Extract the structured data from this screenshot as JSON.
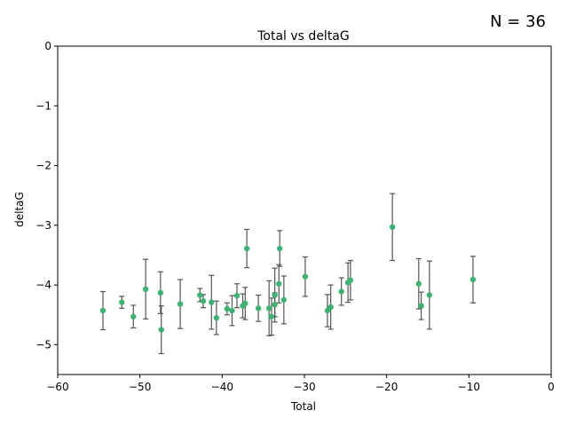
{
  "annotation": "N = 36",
  "chart_data": {
    "type": "scatter",
    "title": "Total vs deltaG",
    "xlabel": "Total",
    "ylabel": "deltaG",
    "xlim": [
      -60,
      0
    ],
    "ylim": [
      -5.5,
      0
    ],
    "xticks": [
      "−60",
      "−50",
      "−40",
      "−30",
      "−20",
      "−10",
      "0"
    ],
    "yticks": [
      "0",
      "−1",
      "−2",
      "−3",
      "−4",
      "−5"
    ],
    "grid": false,
    "point_color": "#3cb371",
    "errorbar_color": "#555555",
    "points": [
      {
        "x": -54.5,
        "y": -4.43,
        "err": 0.32
      },
      {
        "x": -52.2,
        "y": -4.29,
        "err": 0.1
      },
      {
        "x": -50.8,
        "y": -4.53,
        "err": 0.19
      },
      {
        "x": -49.3,
        "y": -4.07,
        "err": 0.5
      },
      {
        "x": -47.5,
        "y": -4.13,
        "err": 0.35
      },
      {
        "x": -47.4,
        "y": -4.75,
        "err": 0.4
      },
      {
        "x": -45.1,
        "y": -4.32,
        "err": 0.41
      },
      {
        "x": -42.7,
        "y": -4.17,
        "err": 0.11
      },
      {
        "x": -42.3,
        "y": -4.27,
        "err": 0.11
      },
      {
        "x": -41.3,
        "y": -4.29,
        "err": 0.45
      },
      {
        "x": -40.7,
        "y": -4.55,
        "err": 0.28
      },
      {
        "x": -39.4,
        "y": -4.4,
        "err": 0.1
      },
      {
        "x": -38.8,
        "y": -4.43,
        "err": 0.25
      },
      {
        "x": -38.2,
        "y": -4.18,
        "err": 0.2
      },
      {
        "x": -37.5,
        "y": -4.35,
        "err": 0.2
      },
      {
        "x": -37.2,
        "y": -4.31,
        "err": 0.27
      },
      {
        "x": -37.0,
        "y": -3.39,
        "err": 0.32
      },
      {
        "x": -35.6,
        "y": -4.39,
        "err": 0.22
      },
      {
        "x": -34.3,
        "y": -4.39,
        "err": 0.46
      },
      {
        "x": -34.0,
        "y": -4.53,
        "err": 0.31
      },
      {
        "x": -33.6,
        "y": -4.17,
        "err": 0.45
      },
      {
        "x": -33.6,
        "y": -4.33,
        "err": 0.2
      },
      {
        "x": -33.1,
        "y": -3.98,
        "err": 0.32
      },
      {
        "x": -33.0,
        "y": -3.39,
        "err": 0.3
      },
      {
        "x": -32.5,
        "y": -4.25,
        "err": 0.4
      },
      {
        "x": -29.9,
        "y": -3.86,
        "err": 0.33
      },
      {
        "x": -27.2,
        "y": -4.43,
        "err": 0.27
      },
      {
        "x": -26.8,
        "y": -4.37,
        "err": 0.37
      },
      {
        "x": -25.5,
        "y": -4.11,
        "err": 0.23
      },
      {
        "x": -24.7,
        "y": -3.96,
        "err": 0.33
      },
      {
        "x": -24.4,
        "y": -3.92,
        "err": 0.33
      },
      {
        "x": -19.3,
        "y": -3.03,
        "err": 0.56
      },
      {
        "x": -16.1,
        "y": -3.98,
        "err": 0.42
      },
      {
        "x": -15.8,
        "y": -4.35,
        "err": 0.23
      },
      {
        "x": -14.8,
        "y": -4.17,
        "err": 0.57
      },
      {
        "x": -9.5,
        "y": -3.91,
        "err": 0.39
      }
    ]
  }
}
